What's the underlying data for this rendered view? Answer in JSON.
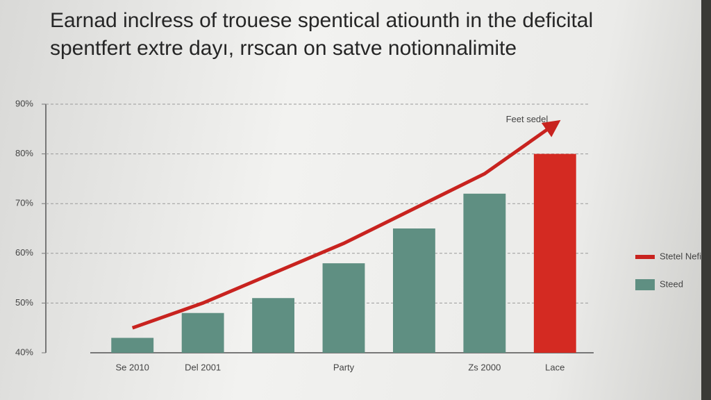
{
  "chart_data": {
    "type": "bar_line",
    "title": "Earnad inclress of trouese spentical atiounth in the deficital spentfert extre dayı, rrscan on satve notionnalimite",
    "annotation": "Feet sedel",
    "categories": [
      "Se 2010",
      "Del 2001",
      null,
      "Party",
      null,
      "Zs 2000",
      "Lace"
    ],
    "series": [
      {
        "name": "Steed",
        "type": "bar",
        "color": "#5f8f82",
        "values": [
          43,
          48,
          51,
          58,
          65,
          72,
          80
        ],
        "highlight_color": "#d42a22"
      },
      {
        "name": "Stetel Nefinell",
        "type": "line",
        "color": "#c8231f",
        "values": [
          45,
          50,
          56,
          62,
          69,
          76,
          86
        ]
      }
    ],
    "ylim": [
      40,
      90
    ],
    "yticks": [
      {
        "value": 40,
        "label": "40%"
      },
      {
        "value": 50,
        "label": "50%"
      },
      {
        "value": 60,
        "label": "60%"
      },
      {
        "value": 70,
        "label": "70%"
      },
      {
        "value": 80,
        "label": "80%"
      },
      {
        "value": 90,
        "label": "90%"
      }
    ],
    "grid": true,
    "legend": "right"
  }
}
